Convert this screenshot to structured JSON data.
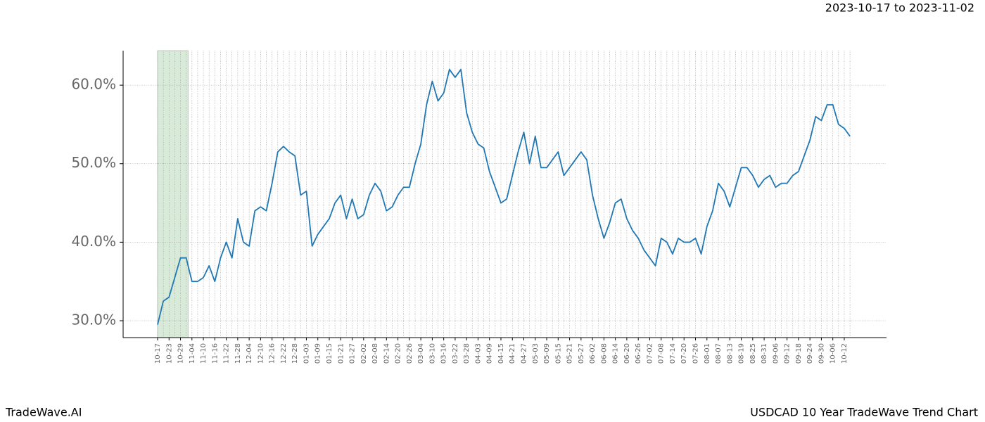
{
  "chart_data": {
    "type": "line",
    "title": "USDCAD 10 Year TradeWave Trend Chart",
    "subtitle": "2023-10-17 to 2023-11-02",
    "brand": "TradeWave.AI",
    "categories": [
      "10-17",
      null,
      "10-23",
      null,
      "10-29",
      null,
      "11-04",
      null,
      "11-10",
      null,
      "11-16",
      null,
      "11-22",
      null,
      "11-28",
      null,
      "12-04",
      null,
      "12-10",
      null,
      "12-16",
      null,
      "12-22",
      null,
      "12-28",
      null,
      "01-03",
      null,
      "01-09",
      null,
      "01-15",
      null,
      "01-21",
      null,
      "01-27",
      null,
      "02-02",
      null,
      "02-08",
      null,
      "02-14",
      null,
      "02-20",
      null,
      "02-26",
      null,
      "03-04",
      null,
      "03-10",
      null,
      "03-16",
      null,
      "03-22",
      null,
      "03-28",
      null,
      "04-03",
      null,
      "04-09",
      null,
      "04-15",
      null,
      "04-21",
      null,
      "04-27",
      null,
      "05-03",
      null,
      "05-09",
      null,
      "05-15",
      null,
      "05-21",
      null,
      "05-27",
      null,
      "06-02",
      null,
      "06-08",
      null,
      "06-14",
      null,
      "06-20",
      null,
      "06-26",
      null,
      "07-02",
      null,
      "07-08",
      null,
      "07-14",
      null,
      "07-20",
      null,
      "07-26",
      null,
      "08-01",
      null,
      "08-07",
      null,
      "08-13",
      null,
      "08-19",
      null,
      "08-25",
      null,
      "08-31",
      null,
      "09-06",
      null,
      "09-12",
      null,
      "09-18",
      null,
      "09-24",
      null,
      "09-30",
      null,
      "10-06",
      null,
      "10-12",
      null
    ],
    "series": [
      {
        "name": "USDCAD",
        "color": "#1f77b4",
        "values": [
          29.5,
          32.5,
          33,
          35.5,
          38,
          38,
          35,
          35,
          35.5,
          37,
          35,
          38,
          40,
          38,
          43,
          40,
          39.5,
          44,
          44.5,
          44,
          47.5,
          51.5,
          52.2,
          51.5,
          51,
          46,
          46.5,
          39.5,
          41,
          42,
          43,
          45,
          46,
          43,
          45.5,
          43,
          43.5,
          46,
          47.5,
          46.5,
          44,
          44.5,
          46,
          47,
          47,
          50,
          52.5,
          57.5,
          60.5,
          58,
          59,
          62,
          61,
          62,
          56.5,
          54,
          52.5,
          52,
          49,
          47,
          45,
          45.5,
          48.5,
          51.5,
          54,
          50,
          53.5,
          49.5,
          49.5,
          50.5,
          51.5,
          48.5,
          49.5,
          50.5,
          51.5,
          50.5,
          46,
          43,
          40.5,
          42.5,
          45,
          45.5,
          43,
          41.5,
          40.5,
          39,
          38,
          37,
          40.5,
          40,
          38.5,
          40.5,
          40,
          40,
          40.5,
          38.5,
          42,
          44,
          47.5,
          46.5,
          44.5,
          47,
          49.5,
          49.5,
          48.5,
          47,
          48,
          48.5,
          47,
          47.5,
          47.5,
          48.5,
          49,
          51,
          53,
          56,
          55.5,
          57.5,
          57.5,
          55,
          54.5,
          53.5
        ]
      }
    ],
    "ylim": [
      27.85,
      64.4
    ],
    "yticks": [
      {
        "value": 30,
        "label": "30.0%"
      },
      {
        "value": 40,
        "label": "40.0%"
      },
      {
        "value": 50,
        "label": "50.0%"
      },
      {
        "value": 60,
        "label": "60.0%"
      }
    ],
    "grid": true,
    "highlight_color": "#d8ead8"
  }
}
